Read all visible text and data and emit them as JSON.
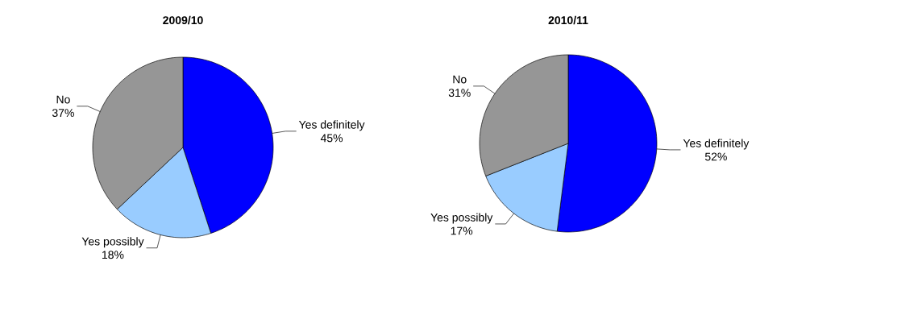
{
  "chart_data": [
    {
      "type": "pie",
      "title": "2009/10",
      "categories": [
        "Yes definitely",
        "Yes possibly",
        "No"
      ],
      "values": [
        45,
        18,
        37
      ],
      "colors": [
        "#0000ff",
        "#99ccff",
        "#969696"
      ],
      "value_labels": [
        "45%",
        "18%",
        "37%"
      ]
    },
    {
      "type": "pie",
      "title": "2010/11",
      "categories": [
        "Yes definitely",
        "Yes possibly",
        "No"
      ],
      "values": [
        52,
        17,
        31
      ],
      "colors": [
        "#0000ff",
        "#99ccff",
        "#969696"
      ],
      "value_labels": [
        "52%",
        "17%",
        "31%"
      ]
    }
  ]
}
